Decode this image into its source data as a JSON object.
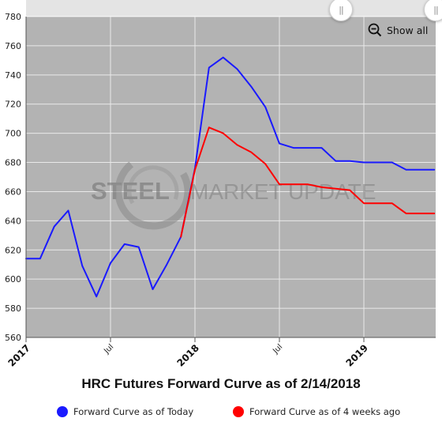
{
  "chart_data": {
    "type": "line",
    "title": "HRC Futures Forward Curve as of 2/14/2018",
    "xlabel": "",
    "ylabel": "",
    "ylim": [
      560,
      780
    ],
    "y_ticks": [
      560,
      580,
      600,
      620,
      640,
      660,
      680,
      700,
      720,
      740,
      760,
      780
    ],
    "x_ticks": [
      {
        "label": "2017",
        "major": true
      },
      {
        "label": "Jul",
        "major": false
      },
      {
        "label": "2018",
        "major": true
      },
      {
        "label": "Jul",
        "major": false
      },
      {
        "label": "2019",
        "major": true
      }
    ],
    "grid": true,
    "legend_position": "bottom",
    "series": [
      {
        "name": "Forward Curve as of Today",
        "color": "#1a1aff",
        "x": [
          "2017-01",
          "2017-02",
          "2017-03",
          "2017-04",
          "2017-05",
          "2017-06",
          "2017-07",
          "2017-08",
          "2017-09",
          "2017-10",
          "2017-11",
          "2017-12",
          "2018-01",
          "2018-02",
          "2018-03",
          "2018-04",
          "2018-05",
          "2018-06",
          "2018-07",
          "2018-08",
          "2018-09",
          "2018-10",
          "2018-11",
          "2018-12",
          "2019-01",
          "2019-02",
          "2019-03",
          "2019-04",
          "2019-05",
          "2019-06"
        ],
        "values": [
          614,
          614,
          636,
          647,
          609,
          588,
          611,
          624,
          622,
          593,
          610,
          629,
          676,
          745,
          752,
          744,
          732,
          718,
          693,
          690,
          690,
          690,
          681,
          681,
          680,
          680,
          680,
          675,
          675,
          675
        ]
      },
      {
        "name": "Forward Curve as of 4 weeks ago",
        "color": "#ff0000",
        "x": [
          "2017-12",
          "2018-01",
          "2018-02",
          "2018-03",
          "2018-04",
          "2018-05",
          "2018-06",
          "2018-07",
          "2018-08",
          "2018-09",
          "2018-10",
          "2018-11",
          "2018-12",
          "2019-01",
          "2019-02",
          "2019-03",
          "2019-04",
          "2019-05",
          "2019-06"
        ],
        "values": [
          629,
          675,
          704,
          700,
          692,
          687,
          679,
          665,
          665,
          665,
          663,
          662,
          661,
          652,
          652,
          652,
          645,
          645,
          645
        ]
      }
    ]
  },
  "watermark": {
    "bold_text": "STEEL",
    "light_text": "MARKET UPDATE"
  },
  "controls": {
    "show_all_label": "Show all"
  },
  "colors": {
    "plot_bg": "#b3b3b3",
    "grid": "#e9e9e9"
  },
  "icons": {
    "zoom": "zoom-out-icon",
    "handle": "navigator-handle-icon"
  }
}
